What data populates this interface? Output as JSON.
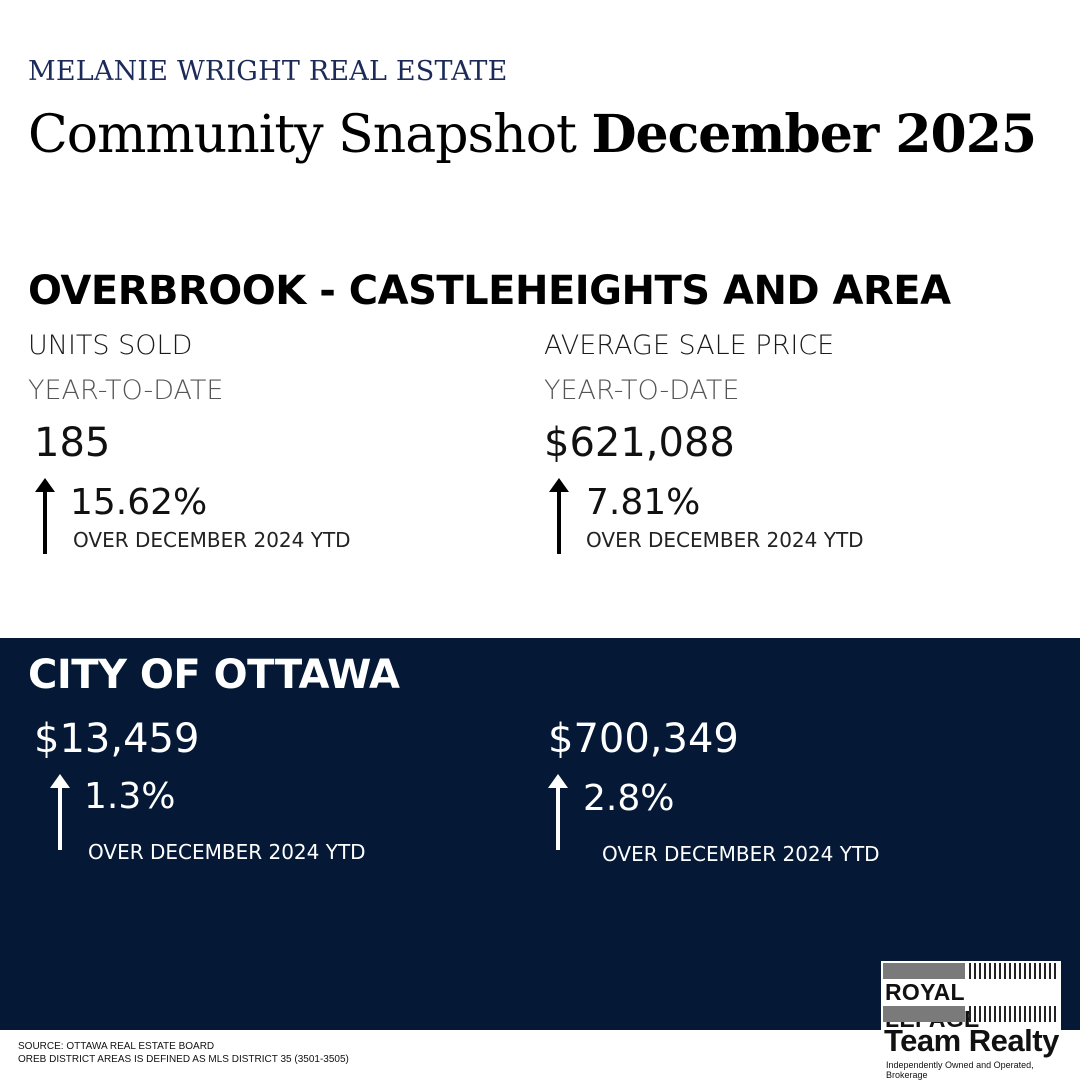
{
  "header": {
    "brand": "MELANIE WRIGHT REAL ESTATE",
    "title_regular": "Community Snapshot ",
    "title_bold": "December 2025"
  },
  "community": {
    "name": "OVERBROOK - CASTLEHEIGHTS AND AREA",
    "units": {
      "label": "UNITS SOLD",
      "period": "YEAR-TO-DATE",
      "value": "185",
      "change": "15.62%",
      "comparison": "OVER DECEMBER 2024 YTD",
      "direction": "up"
    },
    "price": {
      "label": "AVERAGE SALE PRICE",
      "period": "YEAR-TO-DATE",
      "value": "$621,088",
      "change": "7.81%",
      "comparison": "OVER DECEMBER 2024 YTD",
      "direction": "up"
    }
  },
  "city": {
    "name": "CITY OF OTTAWA",
    "units": {
      "value": "$13,459",
      "change": "1.3%",
      "comparison": "OVER DECEMBER 2024 YTD",
      "direction": "up"
    },
    "price": {
      "value": "$700,349",
      "change": "2.8%",
      "comparison": "OVER DECEMBER 2024 YTD",
      "direction": "up"
    }
  },
  "footer": {
    "source": "SOURCE: OTTAWA REAL ESTATE BOARD",
    "district_note": "OREB DISTRICT AREAS IS DEFINED AS MLS DISTRICT 35 (3501-3505)"
  },
  "logo": {
    "line1": "ROYAL LEPAGE",
    "line2": "Team Realty",
    "tagline": "Independently Owned and Operated, Brokerage"
  },
  "colors": {
    "navy": "#051937",
    "brand_text": "#1c2a5a"
  },
  "icons": {
    "increase": "arrow-up-icon"
  }
}
